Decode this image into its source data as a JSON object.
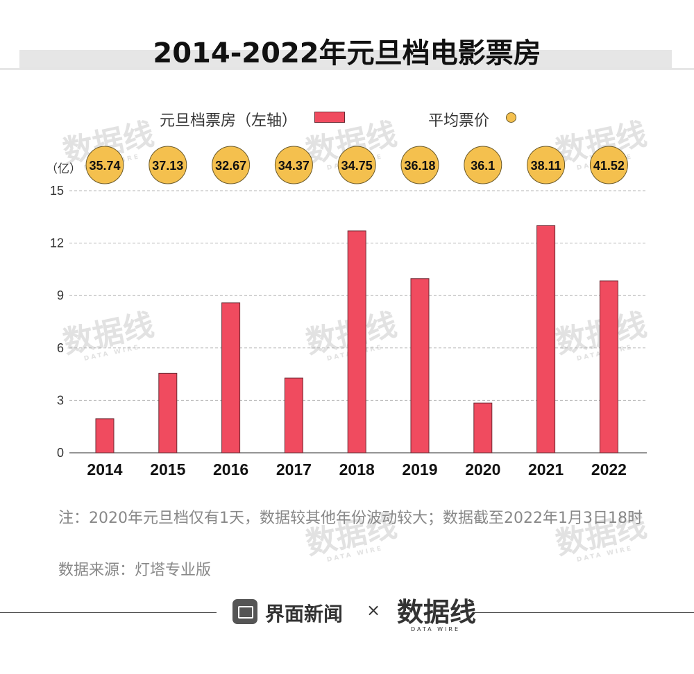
{
  "title": "2014-2022年元旦档电影票房",
  "legend": {
    "bar_label": "元旦档票房（左轴）",
    "dot_label": "平均票价"
  },
  "unit_label": "（亿）",
  "note": "注：2020年元旦档仅有1天，数据较其他年份波动较大；数据截至2022年1月3日18时",
  "source": "数据来源：灯塔专业版",
  "footer": {
    "brand1": "界面新闻",
    "times": "×",
    "brand2": "数据线",
    "brand2_sub": "DATA WIRE"
  },
  "watermark": {
    "text": "数据线",
    "sub": "DATA WIRE"
  },
  "colors": {
    "bar": "#f04b5f",
    "bar_stroke": "#6b2a33",
    "dot": "#f4c04e",
    "dot_stroke": "#6b5a2a",
    "grid": "#b5b5b5"
  },
  "chart_data": {
    "type": "bar",
    "categories": [
      "2014",
      "2015",
      "2016",
      "2017",
      "2018",
      "2019",
      "2020",
      "2021",
      "2022"
    ],
    "series": [
      {
        "name": "元旦档票房（左轴）",
        "values": [
          1.95,
          4.55,
          8.58,
          4.28,
          12.7,
          9.97,
          2.85,
          13.0,
          9.84
        ]
      },
      {
        "name": "平均票价",
        "values": [
          35.74,
          37.13,
          32.67,
          34.37,
          34.75,
          36.18,
          36.1,
          38.11,
          41.52
        ]
      }
    ],
    "y_ticks": [
      "0",
      "3",
      "6",
      "9",
      "12",
      "15"
    ],
    "ylim": [
      0,
      15
    ],
    "grid": true,
    "legend_position": "top"
  }
}
